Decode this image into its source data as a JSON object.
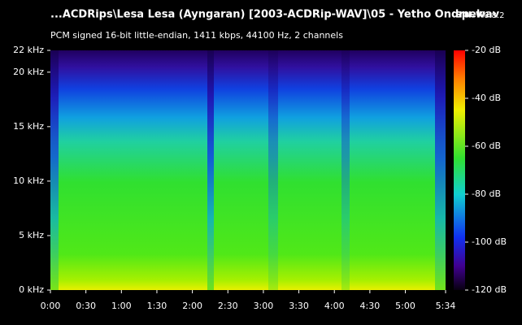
{
  "chart_data": {
    "type": "spectrogram",
    "title": "...ACDRips\\Lesa Lesa (Ayngaran) [2003-ACDRip-WAV]\\05 - Yetho Ondru.wav",
    "app_name": "spek",
    "app_version": "0.8.2",
    "subtitle": "PCM signed 16-bit little-endian, 1411 kbps, 44100 Hz, 2 channels",
    "xlim": [
      0,
      334
    ],
    "xticks": [
      {
        "value": 0,
        "label": "0:00"
      },
      {
        "value": 30,
        "label": "0:30"
      },
      {
        "value": 60,
        "label": "1:00"
      },
      {
        "value": 90,
        "label": "1:30"
      },
      {
        "value": 120,
        "label": "2:00"
      },
      {
        "value": 150,
        "label": "2:30"
      },
      {
        "value": 180,
        "label": "3:00"
      },
      {
        "value": 210,
        "label": "3:30"
      },
      {
        "value": 240,
        "label": "4:00"
      },
      {
        "value": 270,
        "label": "4:30"
      },
      {
        "value": 300,
        "label": "5:00"
      },
      {
        "value": 334,
        "label": "5:34"
      }
    ],
    "ylim": [
      0,
      22
    ],
    "yticks": [
      {
        "value": 0,
        "label": "0 kHz"
      },
      {
        "value": 5,
        "label": "5 kHz"
      },
      {
        "value": 10,
        "label": "10 kHz"
      },
      {
        "value": 15,
        "label": "15 kHz"
      },
      {
        "value": 20,
        "label": "20 kHz"
      },
      {
        "value": 22,
        "label": "22 kHz"
      }
    ],
    "zlim": [
      -120,
      -20
    ],
    "zticks": [
      {
        "value": -20,
        "label": "-20 dB"
      },
      {
        "value": -40,
        "label": "-40 dB"
      },
      {
        "value": -60,
        "label": "-60 dB"
      },
      {
        "value": -80,
        "label": "-80 dB"
      },
      {
        "value": -100,
        "label": "-100 dB"
      },
      {
        "value": -120,
        "label": "-120 dB"
      }
    ]
  }
}
